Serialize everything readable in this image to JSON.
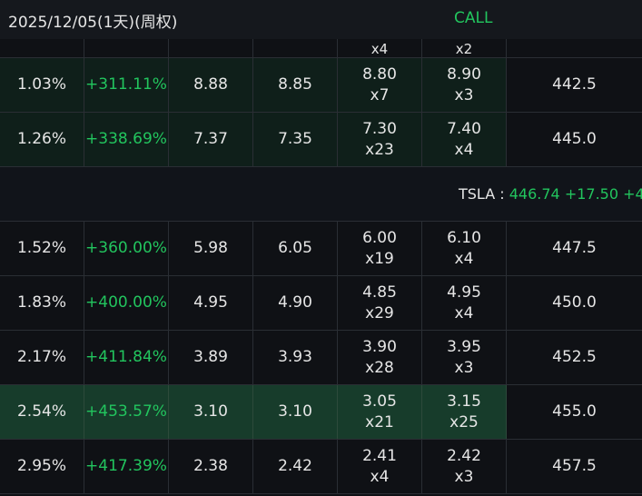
{
  "header": {
    "date": "2025/12/05(1天)(周权)",
    "side": "CALL"
  },
  "partial_row": {
    "bid_size": "x4",
    "ask_size": "x2"
  },
  "ticker_bar": {
    "symbol": "TSLA :",
    "price": "446.74",
    "change": "+17.50",
    "change_pct_partial": "+4"
  },
  "rows_above": [
    {
      "iv": "1.03%",
      "chg_pct": "+311.11%",
      "last": "8.88",
      "mark": "8.85",
      "bid": "8.80",
      "bid_size": "x7",
      "ask": "8.90",
      "ask_size": "x3",
      "strike": "442.5"
    },
    {
      "iv": "1.26%",
      "chg_pct": "+338.69%",
      "last": "7.37",
      "mark": "7.35",
      "bid": "7.30",
      "bid_size": "x23",
      "ask": "7.40",
      "ask_size": "x4",
      "strike": "445.0"
    }
  ],
  "rows_below": [
    {
      "iv": "1.52%",
      "chg_pct": "+360.00%",
      "last": "5.98",
      "mark": "6.05",
      "bid": "6.00",
      "bid_size": "x19",
      "ask": "6.10",
      "ask_size": "x4",
      "strike": "447.5"
    },
    {
      "iv": "1.83%",
      "chg_pct": "+400.00%",
      "last": "4.95",
      "mark": "4.90",
      "bid": "4.85",
      "bid_size": "x29",
      "ask": "4.95",
      "ask_size": "x4",
      "strike": "450.0"
    },
    {
      "iv": "2.17%",
      "chg_pct": "+411.84%",
      "last": "3.89",
      "mark": "3.93",
      "bid": "3.90",
      "bid_size": "x28",
      "ask": "3.95",
      "ask_size": "x3",
      "strike": "452.5"
    },
    {
      "iv": "2.54%",
      "chg_pct": "+453.57%",
      "last": "3.10",
      "mark": "3.10",
      "bid": "3.05",
      "bid_size": "x21",
      "ask": "3.15",
      "ask_size": "x25",
      "strike": "455.0"
    },
    {
      "iv": "2.95%",
      "chg_pct": "+417.39%",
      "last": "2.38",
      "mark": "2.42",
      "bid": "2.41",
      "bid_size": "x4",
      "ask": "2.42",
      "ask_size": "x3",
      "strike": "457.5"
    }
  ],
  "colors": {
    "positive": "#22c55e",
    "background": "#0f1115",
    "itm_row": "#0f1f1a",
    "highlight_row": "#173c2b"
  }
}
